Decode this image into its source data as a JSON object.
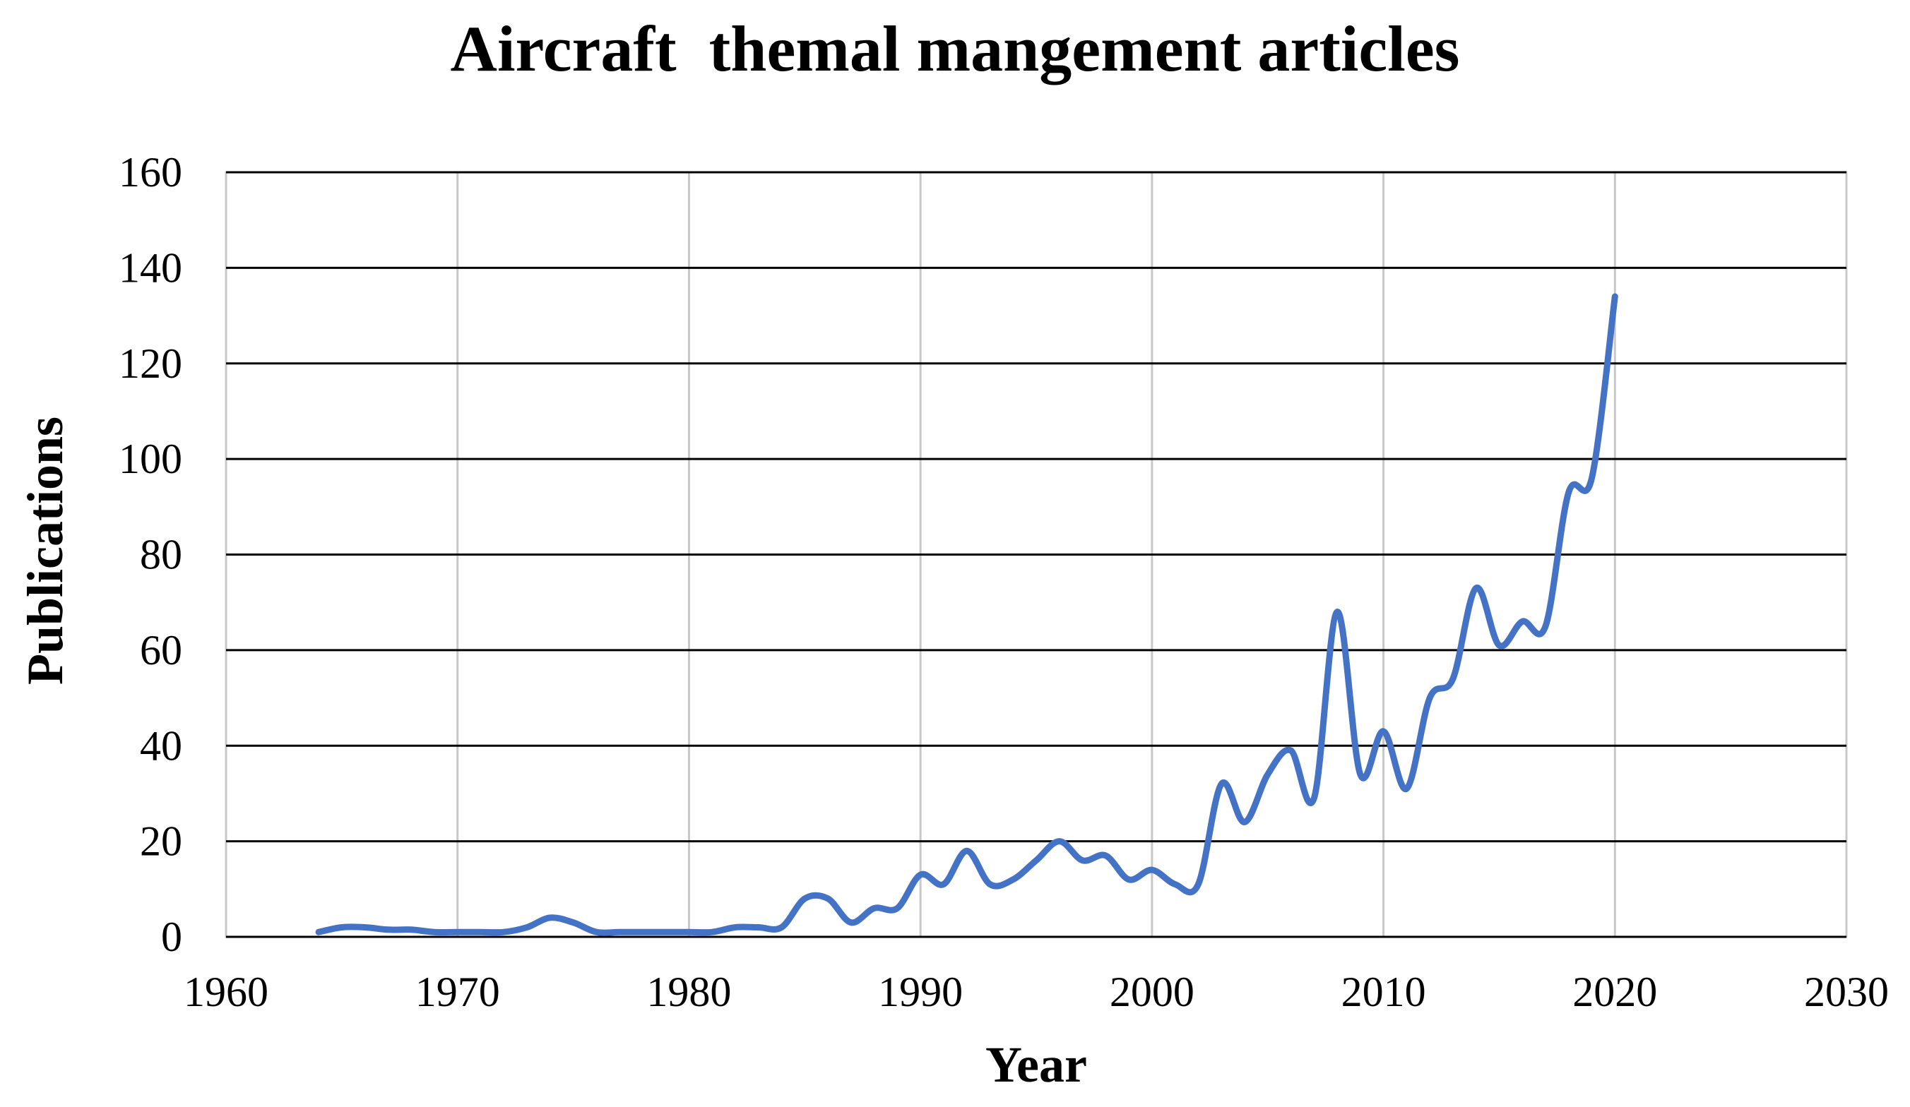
{
  "chart_data": {
    "type": "line",
    "title": "Aircraft  themal mangement articles",
    "xlabel": "Year",
    "ylabel": "Publications",
    "xlim": [
      1960,
      2030
    ],
    "ylim": [
      0,
      160
    ],
    "xticks": [
      1960,
      1970,
      1980,
      1990,
      2000,
      2010,
      2020,
      2030
    ],
    "yticks": [
      0,
      20,
      40,
      60,
      80,
      100,
      120,
      140,
      160
    ],
    "grid": true,
    "legend": "none",
    "smooth": true,
    "series_color": "#4472c4",
    "series": [
      {
        "x": [
          1964,
          1965,
          1966,
          1967,
          1968,
          1969,
          1970,
          1971,
          1972,
          1973,
          1974,
          1975,
          1976,
          1977,
          1978,
          1979,
          1980,
          1981,
          1982,
          1983,
          1984,
          1985,
          1986,
          1987,
          1988,
          1989,
          1990,
          1991,
          1992,
          1993,
          1994,
          1995,
          1996,
          1997,
          1998,
          1999,
          2000,
          2001,
          2002,
          2003,
          2004,
          2005,
          2006,
          2007,
          2008,
          2009,
          2010,
          2011,
          2012,
          2013,
          2014,
          2015,
          2016,
          2017,
          2018,
          2019,
          2020
        ],
        "y": [
          1,
          2,
          2,
          1.5,
          1.5,
          1,
          1,
          1,
          1,
          2,
          4,
          3,
          1,
          1,
          1,
          1,
          1,
          1,
          2,
          2,
          2,
          8,
          8,
          3,
          6,
          6,
          13,
          11,
          18,
          11,
          12,
          16,
          20,
          16,
          17,
          12,
          14,
          11,
          11,
          32,
          24,
          34,
          39,
          29,
          68,
          34,
          43,
          31,
          50,
          54,
          73,
          61,
          66,
          65,
          93,
          96,
          134
        ]
      }
    ]
  }
}
